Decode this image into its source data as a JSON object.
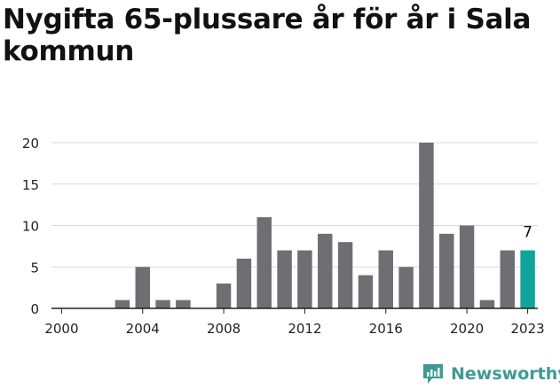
{
  "title": "Nygifta 65-plussare år för år i Sala kommun",
  "brand": {
    "name": "Newsworthy"
  },
  "colors": {
    "bar": "#6e6e73",
    "highlight": "#10a59a",
    "grid": "#d9d9d9",
    "axis": "#222222",
    "text": "#222222",
    "brand": "#3f9a96"
  },
  "chart_data": {
    "type": "bar",
    "title": "Nygifta 65-plussare år för år i Sala kommun",
    "xlabel": "",
    "ylabel": "",
    "categories": [
      2000,
      2001,
      2002,
      2003,
      2004,
      2005,
      2006,
      2007,
      2008,
      2009,
      2010,
      2011,
      2012,
      2013,
      2014,
      2015,
      2016,
      2017,
      2018,
      2019,
      2020,
      2021,
      2022,
      2023
    ],
    "values": [
      0,
      0,
      0,
      1,
      5,
      1,
      1,
      0,
      3,
      6,
      11,
      7,
      7,
      9,
      8,
      4,
      7,
      5,
      20,
      9,
      10,
      1,
      7,
      7
    ],
    "ylim": [
      0,
      20
    ],
    "yticks": [
      0,
      5,
      10,
      15,
      20
    ],
    "xticks": [
      2000,
      2004,
      2008,
      2012,
      2016,
      2020,
      2023
    ],
    "highlight": {
      "category": 2023,
      "label": "7"
    },
    "grid": "horizontal"
  }
}
